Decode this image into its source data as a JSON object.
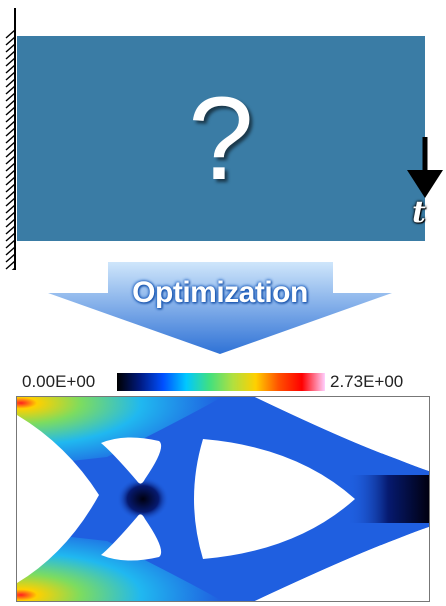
{
  "diagram": {
    "problem": {
      "question_mark": "?",
      "load_label": "t"
    },
    "arrow": {
      "label": "Optimization"
    },
    "colorbar": {
      "min_label": "0.00E+00",
      "max_label": "2.73E+00",
      "colors": [
        "#000000",
        "#001a80",
        "#0050ff",
        "#00c8ff",
        "#40e080",
        "#b0e040",
        "#ffd000",
        "#ff5000",
        "#ff0000",
        "#ffd0ff"
      ]
    },
    "colors": {
      "domain": "#3a7ca5",
      "arrow_light": "#cfe6fb",
      "arrow_dark": "#2f72d6",
      "structure": "#1f5fe0"
    }
  }
}
